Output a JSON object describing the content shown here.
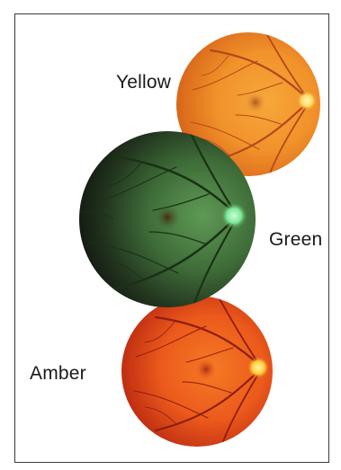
{
  "labels": {
    "yellow": "Yellow",
    "green": "Green",
    "amber": "Amber"
  },
  "retinas": [
    {
      "id": "yellow",
      "name": "yellow-retina-image",
      "base": "#f29a2e",
      "edge": "#d86a12",
      "macula": "#b86a2a",
      "disc": "#fff2a0",
      "vessel": "#b2481a"
    },
    {
      "id": "green",
      "name": "green-retina-image",
      "base": "#4e8a48",
      "edge": "#121a10",
      "macula": "#4a2a14",
      "disc": "#9ff0b0",
      "vessel": "#1e3a1a"
    },
    {
      "id": "amber",
      "name": "amber-retina-image",
      "base": "#f0601c",
      "edge": "#bb2a12",
      "macula": "#b83a1a",
      "disc": "#ffee80",
      "vessel": "#8e1e0e"
    }
  ]
}
